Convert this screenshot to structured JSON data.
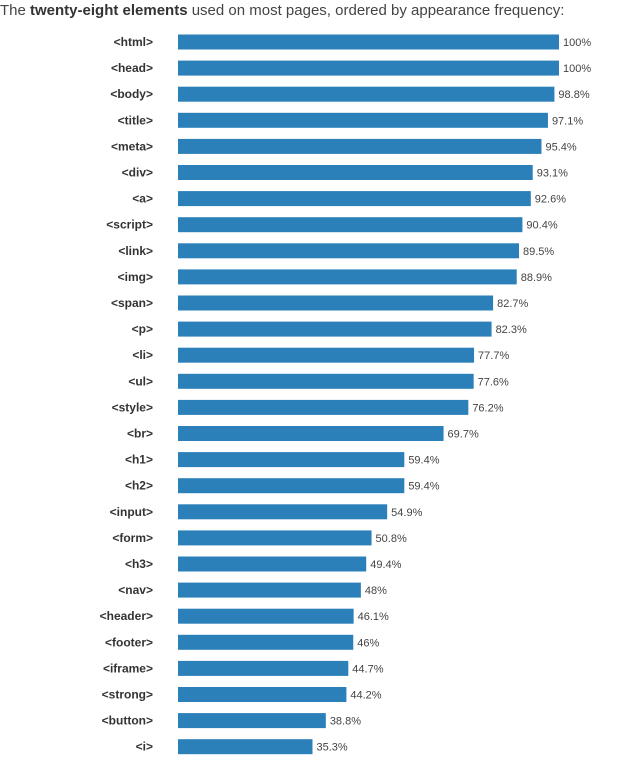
{
  "title": {
    "prefix": "The ",
    "bold": "twenty-eight elements",
    "suffix": " used on most pages, ordered by appearance frequency:"
  },
  "colors": {
    "bar": "#2b80b9"
  },
  "chart_data": {
    "type": "bar",
    "orientation": "horizontal",
    "categories": [
      "<html>",
      "<head>",
      "<body>",
      "<title>",
      "<meta>",
      "<div>",
      "<a>",
      "<script>",
      "<link>",
      "<img>",
      "<span>",
      "<p>",
      "<li>",
      "<ul>",
      "<style>",
      "<br>",
      "<h1>",
      "<h2>",
      "<input>",
      "<form>",
      "<h3>",
      "<nav>",
      "<header>",
      "<footer>",
      "<iframe>",
      "<strong>",
      "<button>",
      "<i>"
    ],
    "values": [
      100,
      100,
      98.8,
      97.1,
      95.4,
      93.1,
      92.6,
      90.4,
      89.5,
      88.9,
      82.7,
      82.3,
      77.7,
      77.6,
      76.2,
      69.7,
      59.4,
      59.4,
      54.9,
      50.8,
      49.4,
      48,
      46.1,
      46,
      44.7,
      44.2,
      38.8,
      35.3
    ],
    "value_labels": [
      "100%",
      "100%",
      "98.8%",
      "97.1%",
      "95.4%",
      "93.1%",
      "92.6%",
      "90.4%",
      "89.5%",
      "88.9%",
      "82.7%",
      "82.3%",
      "77.7%",
      "77.6%",
      "76.2%",
      "69.7%",
      "59.4%",
      "59.4%",
      "54.9%",
      "50.8%",
      "49.4%",
      "48%",
      "46.1%",
      "46%",
      "44.7%",
      "44.2%",
      "38.8%",
      "35.3%"
    ],
    "unit": "%",
    "xlim": [
      0,
      100
    ],
    "grid": false,
    "legend": "none"
  }
}
